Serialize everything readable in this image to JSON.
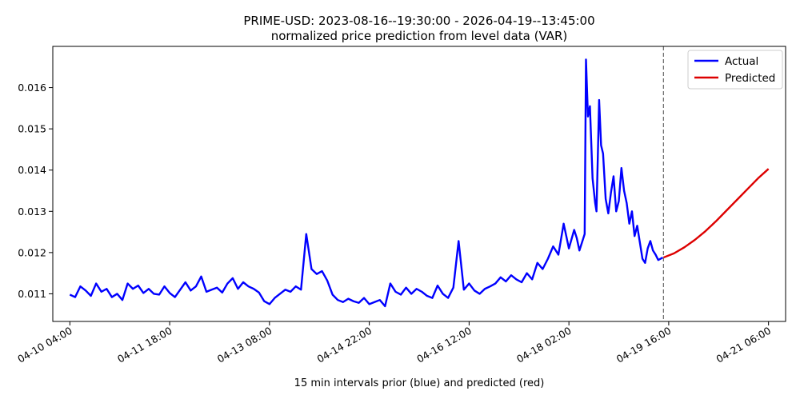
{
  "chart_data": {
    "type": "line",
    "title": "PRIME-USD: 2023-08-16--19:30:00 - 2026-04-19--13:45:00",
    "subtitle": "normalized price prediction from level data (VAR)",
    "xlabel": "15 min intervals prior (blue) and predicted (red)",
    "ylabel": "",
    "xlim": [
      "2026-04-09 21:30",
      "2026-04-21 12:30"
    ],
    "ylim": [
      0.01033,
      0.017
    ],
    "x_ticks": [
      {
        "t": "2026-04-10 04:00",
        "label": "04-10 04:00"
      },
      {
        "t": "2026-04-11 18:00",
        "label": "04-11 18:00"
      },
      {
        "t": "2026-04-13 08:00",
        "label": "04-13 08:00"
      },
      {
        "t": "2026-04-14 22:00",
        "label": "04-14 22:00"
      },
      {
        "t": "2026-04-16 12:00",
        "label": "04-16 12:00"
      },
      {
        "t": "2026-04-18 02:00",
        "label": "04-18 02:00"
      },
      {
        "t": "2026-04-19 16:00",
        "label": "04-19 16:00"
      },
      {
        "t": "2026-04-21 06:00",
        "label": "04-21 06:00"
      }
    ],
    "y_ticks": [
      {
        "v": 0.011,
        "label": "0.011"
      },
      {
        "v": 0.012,
        "label": "0.012"
      },
      {
        "v": 0.013,
        "label": "0.013"
      },
      {
        "v": 0.014,
        "label": "0.014"
      },
      {
        "v": 0.015,
        "label": "0.015"
      },
      {
        "v": 0.016,
        "label": "0.016"
      }
    ],
    "forecast_boundary": "2026-04-19 14:00",
    "legend": {
      "position": "upper right",
      "entries": [
        "Actual",
        "Predicted"
      ]
    },
    "grid": false,
    "series": [
      {
        "name": "Actual",
        "color": "#0000ff",
        "points": [
          [
            "2026-04-10 04:00",
            0.01098
          ],
          [
            "2026-04-10 06:00",
            0.01092
          ],
          [
            "2026-04-10 08:00",
            0.01118
          ],
          [
            "2026-04-10 10:00",
            0.01108
          ],
          [
            "2026-04-10 12:00",
            0.01095
          ],
          [
            "2026-04-10 14:00",
            0.01125
          ],
          [
            "2026-04-10 16:00",
            0.01105
          ],
          [
            "2026-04-10 18:00",
            0.01112
          ],
          [
            "2026-04-10 20:00",
            0.01092
          ],
          [
            "2026-04-10 22:00",
            0.011
          ],
          [
            "2026-04-11 00:00",
            0.01085
          ],
          [
            "2026-04-11 02:00",
            0.01125
          ],
          [
            "2026-04-11 04:00",
            0.01112
          ],
          [
            "2026-04-11 06:00",
            0.0112
          ],
          [
            "2026-04-11 08:00",
            0.01102
          ],
          [
            "2026-04-11 10:00",
            0.01112
          ],
          [
            "2026-04-11 12:00",
            0.011
          ],
          [
            "2026-04-11 14:00",
            0.01098
          ],
          [
            "2026-04-11 16:00",
            0.01118
          ],
          [
            "2026-04-11 18:00",
            0.01102
          ],
          [
            "2026-04-11 20:00",
            0.01092
          ],
          [
            "2026-04-11 22:00",
            0.0111
          ],
          [
            "2026-04-12 00:00",
            0.01128
          ],
          [
            "2026-04-12 02:00",
            0.01108
          ],
          [
            "2026-04-12 04:00",
            0.01118
          ],
          [
            "2026-04-12 06:00",
            0.01142
          ],
          [
            "2026-04-12 08:00",
            0.01105
          ],
          [
            "2026-04-12 10:00",
            0.0111
          ],
          [
            "2026-04-12 12:00",
            0.01115
          ],
          [
            "2026-04-12 14:00",
            0.01103
          ],
          [
            "2026-04-12 16:00",
            0.01125
          ],
          [
            "2026-04-12 18:00",
            0.01138
          ],
          [
            "2026-04-12 20:00",
            0.01112
          ],
          [
            "2026-04-12 22:00",
            0.01128
          ],
          [
            "2026-04-13 00:00",
            0.01118
          ],
          [
            "2026-04-13 02:00",
            0.01112
          ],
          [
            "2026-04-13 04:00",
            0.01103
          ],
          [
            "2026-04-13 06:00",
            0.01082
          ],
          [
            "2026-04-13 08:00",
            0.01075
          ],
          [
            "2026-04-13 10:00",
            0.0109
          ],
          [
            "2026-04-13 12:00",
            0.011
          ],
          [
            "2026-04-13 14:00",
            0.0111
          ],
          [
            "2026-04-13 16:00",
            0.01105
          ],
          [
            "2026-04-13 18:00",
            0.01118
          ],
          [
            "2026-04-13 20:00",
            0.0111
          ],
          [
            "2026-04-13 22:00",
            0.01245
          ],
          [
            "2026-04-14 00:00",
            0.0116
          ],
          [
            "2026-04-14 02:00",
            0.01148
          ],
          [
            "2026-04-14 04:00",
            0.01155
          ],
          [
            "2026-04-14 06:00",
            0.01132
          ],
          [
            "2026-04-14 08:00",
            0.01098
          ],
          [
            "2026-04-14 10:00",
            0.01085
          ],
          [
            "2026-04-14 12:00",
            0.0108
          ],
          [
            "2026-04-14 14:00",
            0.01088
          ],
          [
            "2026-04-14 16:00",
            0.01082
          ],
          [
            "2026-04-14 18:00",
            0.01078
          ],
          [
            "2026-04-14 20:00",
            0.0109
          ],
          [
            "2026-04-14 22:00",
            0.01075
          ],
          [
            "2026-04-15 00:00",
            0.0108
          ],
          [
            "2026-04-15 02:00",
            0.01085
          ],
          [
            "2026-04-15 04:00",
            0.0107
          ],
          [
            "2026-04-15 06:00",
            0.01125
          ],
          [
            "2026-04-15 08:00",
            0.01105
          ],
          [
            "2026-04-15 10:00",
            0.01098
          ],
          [
            "2026-04-15 12:00",
            0.01115
          ],
          [
            "2026-04-15 14:00",
            0.011
          ],
          [
            "2026-04-15 16:00",
            0.01112
          ],
          [
            "2026-04-15 18:00",
            0.01105
          ],
          [
            "2026-04-15 20:00",
            0.01095
          ],
          [
            "2026-04-15 22:00",
            0.0109
          ],
          [
            "2026-04-16 00:00",
            0.0112
          ],
          [
            "2026-04-16 02:00",
            0.011
          ],
          [
            "2026-04-16 04:00",
            0.0109
          ],
          [
            "2026-04-16 06:00",
            0.01115
          ],
          [
            "2026-04-16 08:00",
            0.01228
          ],
          [
            "2026-04-16 10:00",
            0.0111
          ],
          [
            "2026-04-16 12:00",
            0.01125
          ],
          [
            "2026-04-16 14:00",
            0.01108
          ],
          [
            "2026-04-16 16:00",
            0.011
          ],
          [
            "2026-04-16 18:00",
            0.01112
          ],
          [
            "2026-04-16 20:00",
            0.01118
          ],
          [
            "2026-04-16 22:00",
            0.01125
          ],
          [
            "2026-04-17 00:00",
            0.0114
          ],
          [
            "2026-04-17 02:00",
            0.0113
          ],
          [
            "2026-04-17 04:00",
            0.01145
          ],
          [
            "2026-04-17 06:00",
            0.01135
          ],
          [
            "2026-04-17 08:00",
            0.01128
          ],
          [
            "2026-04-17 10:00",
            0.0115
          ],
          [
            "2026-04-17 12:00",
            0.01135
          ],
          [
            "2026-04-17 14:00",
            0.01175
          ],
          [
            "2026-04-17 16:00",
            0.0116
          ],
          [
            "2026-04-17 18:00",
            0.01185
          ],
          [
            "2026-04-17 20:00",
            0.01215
          ],
          [
            "2026-04-17 22:00",
            0.01195
          ],
          [
            "2026-04-18 00:00",
            0.0127
          ],
          [
            "2026-04-18 02:00",
            0.0121
          ],
          [
            "2026-04-18 04:00",
            0.01255
          ],
          [
            "2026-04-18 05:00",
            0.01235
          ],
          [
            "2026-04-18 06:00",
            0.01205
          ],
          [
            "2026-04-18 07:00",
            0.01225
          ],
          [
            "2026-04-18 08:00",
            0.01245
          ],
          [
            "2026-04-18 08:30",
            0.01668
          ],
          [
            "2026-04-18 09:15",
            0.0153
          ],
          [
            "2026-04-18 10:00",
            0.01555
          ],
          [
            "2026-04-18 11:00",
            0.0138
          ],
          [
            "2026-04-18 12:00",
            0.0132
          ],
          [
            "2026-04-18 12:30",
            0.013
          ],
          [
            "2026-04-18 13:00",
            0.0143
          ],
          [
            "2026-04-18 13:30",
            0.0157
          ],
          [
            "2026-04-18 14:15",
            0.0146
          ],
          [
            "2026-04-18 15:00",
            0.0144
          ],
          [
            "2026-04-18 16:00",
            0.0133
          ],
          [
            "2026-04-18 17:00",
            0.01295
          ],
          [
            "2026-04-18 18:00",
            0.01345
          ],
          [
            "2026-04-18 19:00",
            0.01385
          ],
          [
            "2026-04-18 20:00",
            0.013
          ],
          [
            "2026-04-18 21:00",
            0.01325
          ],
          [
            "2026-04-18 22:00",
            0.01405
          ],
          [
            "2026-04-18 23:00",
            0.0135
          ],
          [
            "2026-04-19 00:00",
            0.0132
          ],
          [
            "2026-04-19 01:00",
            0.0127
          ],
          [
            "2026-04-19 02:00",
            0.013
          ],
          [
            "2026-04-19 03:00",
            0.0124
          ],
          [
            "2026-04-19 04:00",
            0.01265
          ],
          [
            "2026-04-19 05:00",
            0.01225
          ],
          [
            "2026-04-19 06:00",
            0.01185
          ],
          [
            "2026-04-19 07:00",
            0.01175
          ],
          [
            "2026-04-19 08:00",
            0.0121
          ],
          [
            "2026-04-19 09:00",
            0.01228
          ],
          [
            "2026-04-19 10:00",
            0.01205
          ],
          [
            "2026-04-19 11:00",
            0.01195
          ],
          [
            "2026-04-19 12:00",
            0.01182
          ],
          [
            "2026-04-19 13:45",
            0.01188
          ]
        ]
      },
      {
        "name": "Predicted",
        "color": "#dd0000",
        "points": [
          [
            "2026-04-19 14:00",
            0.01188
          ],
          [
            "2026-04-19 18:00",
            0.01198
          ],
          [
            "2026-04-19 22:00",
            0.01213
          ],
          [
            "2026-04-20 02:00",
            0.01231
          ],
          [
            "2026-04-20 06:00",
            0.01252
          ],
          [
            "2026-04-20 10:00",
            0.01276
          ],
          [
            "2026-04-20 14:00",
            0.01302
          ],
          [
            "2026-04-20 18:00",
            0.01328
          ],
          [
            "2026-04-20 22:00",
            0.01354
          ],
          [
            "2026-04-21 02:00",
            0.0138
          ],
          [
            "2026-04-21 06:00",
            0.01403
          ]
        ]
      }
    ]
  }
}
